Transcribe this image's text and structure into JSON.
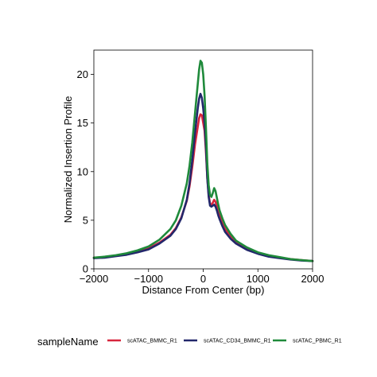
{
  "chart_data": {
    "type": "line",
    "xlabel": "Distance From Center (bp)",
    "ylabel": "Normalized Insertion Profile",
    "xlim": [
      -2000,
      2000
    ],
    "ylim": [
      0,
      22.5
    ],
    "x_ticks": [
      -2000,
      -1000,
      0,
      1000,
      2000
    ],
    "x_tick_labels": [
      "−2000",
      "−1000",
      "0",
      "1000",
      "2000"
    ],
    "y_ticks": [
      0,
      5,
      10,
      15,
      20
    ],
    "y_tick_labels": [
      "0",
      "5",
      "10",
      "15",
      "20"
    ],
    "grid": false,
    "legend": {
      "title": "sampleName",
      "placement": "bottom"
    },
    "x": [
      -2000,
      -1800,
      -1600,
      -1400,
      -1200,
      -1000,
      -800,
      -600,
      -500,
      -400,
      -300,
      -250,
      -200,
      -150,
      -100,
      -75,
      -50,
      -25,
      0,
      25,
      50,
      75,
      100,
      125,
      150,
      175,
      200,
      225,
      250,
      275,
      300,
      350,
      400,
      500,
      600,
      800,
      1000,
      1200,
      1400,
      1600,
      1800,
      2000
    ],
    "series": [
      {
        "name": "scATAC_BMMC_R1",
        "color": "#d7263d",
        "values": [
          1.15,
          1.2,
          1.35,
          1.5,
          1.75,
          2.1,
          2.7,
          3.5,
          4.2,
          5.3,
          7.0,
          8.5,
          10.5,
          12.8,
          14.6,
          15.5,
          15.9,
          15.8,
          15.0,
          14.2,
          12.0,
          9.3,
          7.6,
          6.7,
          6.6,
          6.8,
          7.1,
          6.9,
          6.4,
          5.9,
          5.5,
          4.7,
          4.1,
          3.4,
          2.8,
          2.1,
          1.65,
          1.35,
          1.15,
          1.0,
          0.9,
          0.8
        ]
      },
      {
        "name": "scATAC_CD34_BMMC_R1",
        "color": "#22276b",
        "values": [
          1.1,
          1.15,
          1.3,
          1.45,
          1.7,
          2.0,
          2.6,
          3.4,
          4.1,
          5.2,
          7.1,
          8.8,
          11.2,
          14.0,
          16.5,
          17.5,
          18.0,
          17.6,
          16.5,
          15.0,
          12.5,
          9.3,
          7.4,
          6.5,
          6.4,
          6.5,
          6.6,
          6.4,
          6.0,
          5.5,
          5.1,
          4.4,
          3.8,
          3.1,
          2.6,
          1.95,
          1.55,
          1.25,
          1.1,
          0.95,
          0.85,
          0.8
        ]
      },
      {
        "name": "scATAC_PBMC_R1",
        "color": "#1f8a3b",
        "values": [
          1.15,
          1.25,
          1.4,
          1.6,
          1.9,
          2.3,
          3.0,
          4.1,
          5.0,
          6.5,
          8.8,
          10.6,
          13.0,
          16.0,
          19.0,
          20.5,
          21.4,
          21.2,
          20.0,
          17.8,
          14.5,
          10.8,
          8.6,
          7.6,
          7.4,
          7.8,
          8.3,
          8.0,
          7.3,
          6.6,
          6.0,
          5.2,
          4.5,
          3.6,
          2.9,
          2.2,
          1.7,
          1.4,
          1.2,
          1.0,
          0.9,
          0.8
        ]
      }
    ]
  }
}
